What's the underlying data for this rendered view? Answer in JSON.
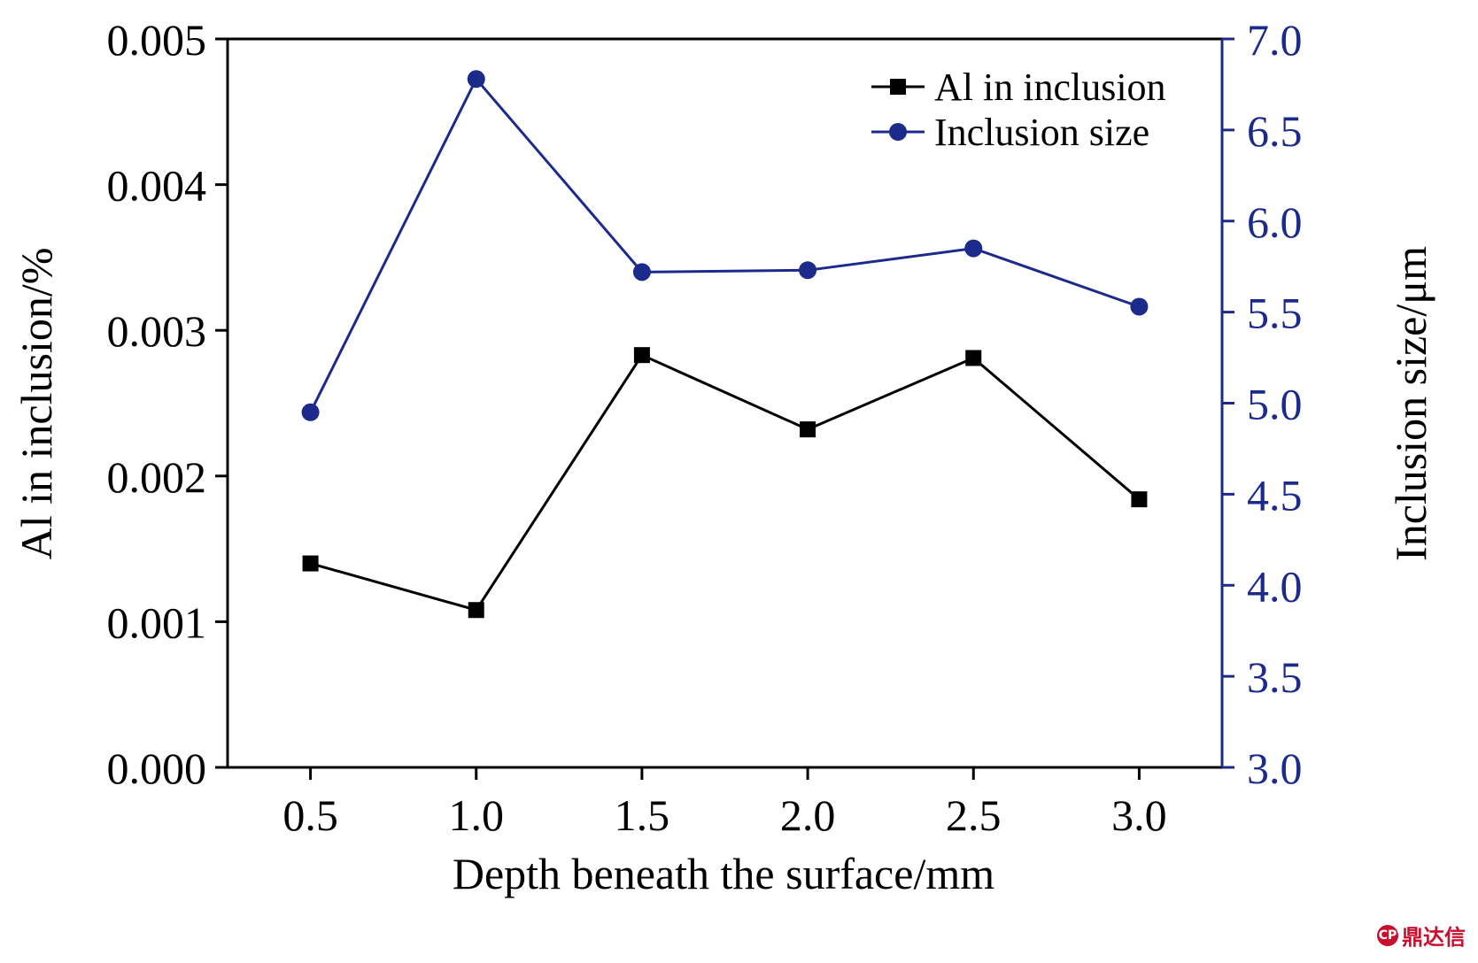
{
  "chart_data": {
    "type": "line",
    "xlabel": "Depth beneath the surface/mm",
    "ylabel_left": "Al in inclusion/%",
    "ylabel_right": "Inclusion size/μm",
    "x": [
      0.5,
      1.0,
      1.5,
      2.0,
      2.5,
      3.0
    ],
    "x_tick_labels": [
      "0.5",
      "1.0",
      "1.5",
      "2.0",
      "2.5",
      "3.0"
    ],
    "xlim": [
      0.25,
      3.25
    ],
    "ylim_left": [
      0,
      0.005
    ],
    "ylim_right": [
      3.0,
      7.0
    ],
    "left_tick_labels": [
      "0.000",
      "0.001",
      "0.002",
      "0.003",
      "0.004",
      "0.005"
    ],
    "left_tick_values": [
      0,
      0.001,
      0.002,
      0.003,
      0.004,
      0.005
    ],
    "right_tick_labels": [
      "3.0",
      "3.5",
      "4.0",
      "4.5",
      "5.0",
      "5.5",
      "6.0",
      "6.5",
      "7.0"
    ],
    "right_tick_values": [
      3.0,
      3.5,
      4.0,
      4.5,
      5.0,
      5.5,
      6.0,
      6.5,
      7.0
    ],
    "series": [
      {
        "name": "Al in inclusion",
        "axis": "left",
        "marker": "square",
        "color": "#000000",
        "values": [
          0.0014,
          0.00108,
          0.00283,
          0.00232,
          0.00281,
          0.00184
        ]
      },
      {
        "name": "Inclusion size",
        "axis": "right",
        "marker": "circle",
        "color": "#1c2a8c",
        "values": [
          4.95,
          6.78,
          5.72,
          5.73,
          5.85,
          5.53
        ]
      }
    ],
    "legend_position": "top-right",
    "grid": false
  },
  "watermark": {
    "text": "鼎达信",
    "badge": "CP"
  }
}
